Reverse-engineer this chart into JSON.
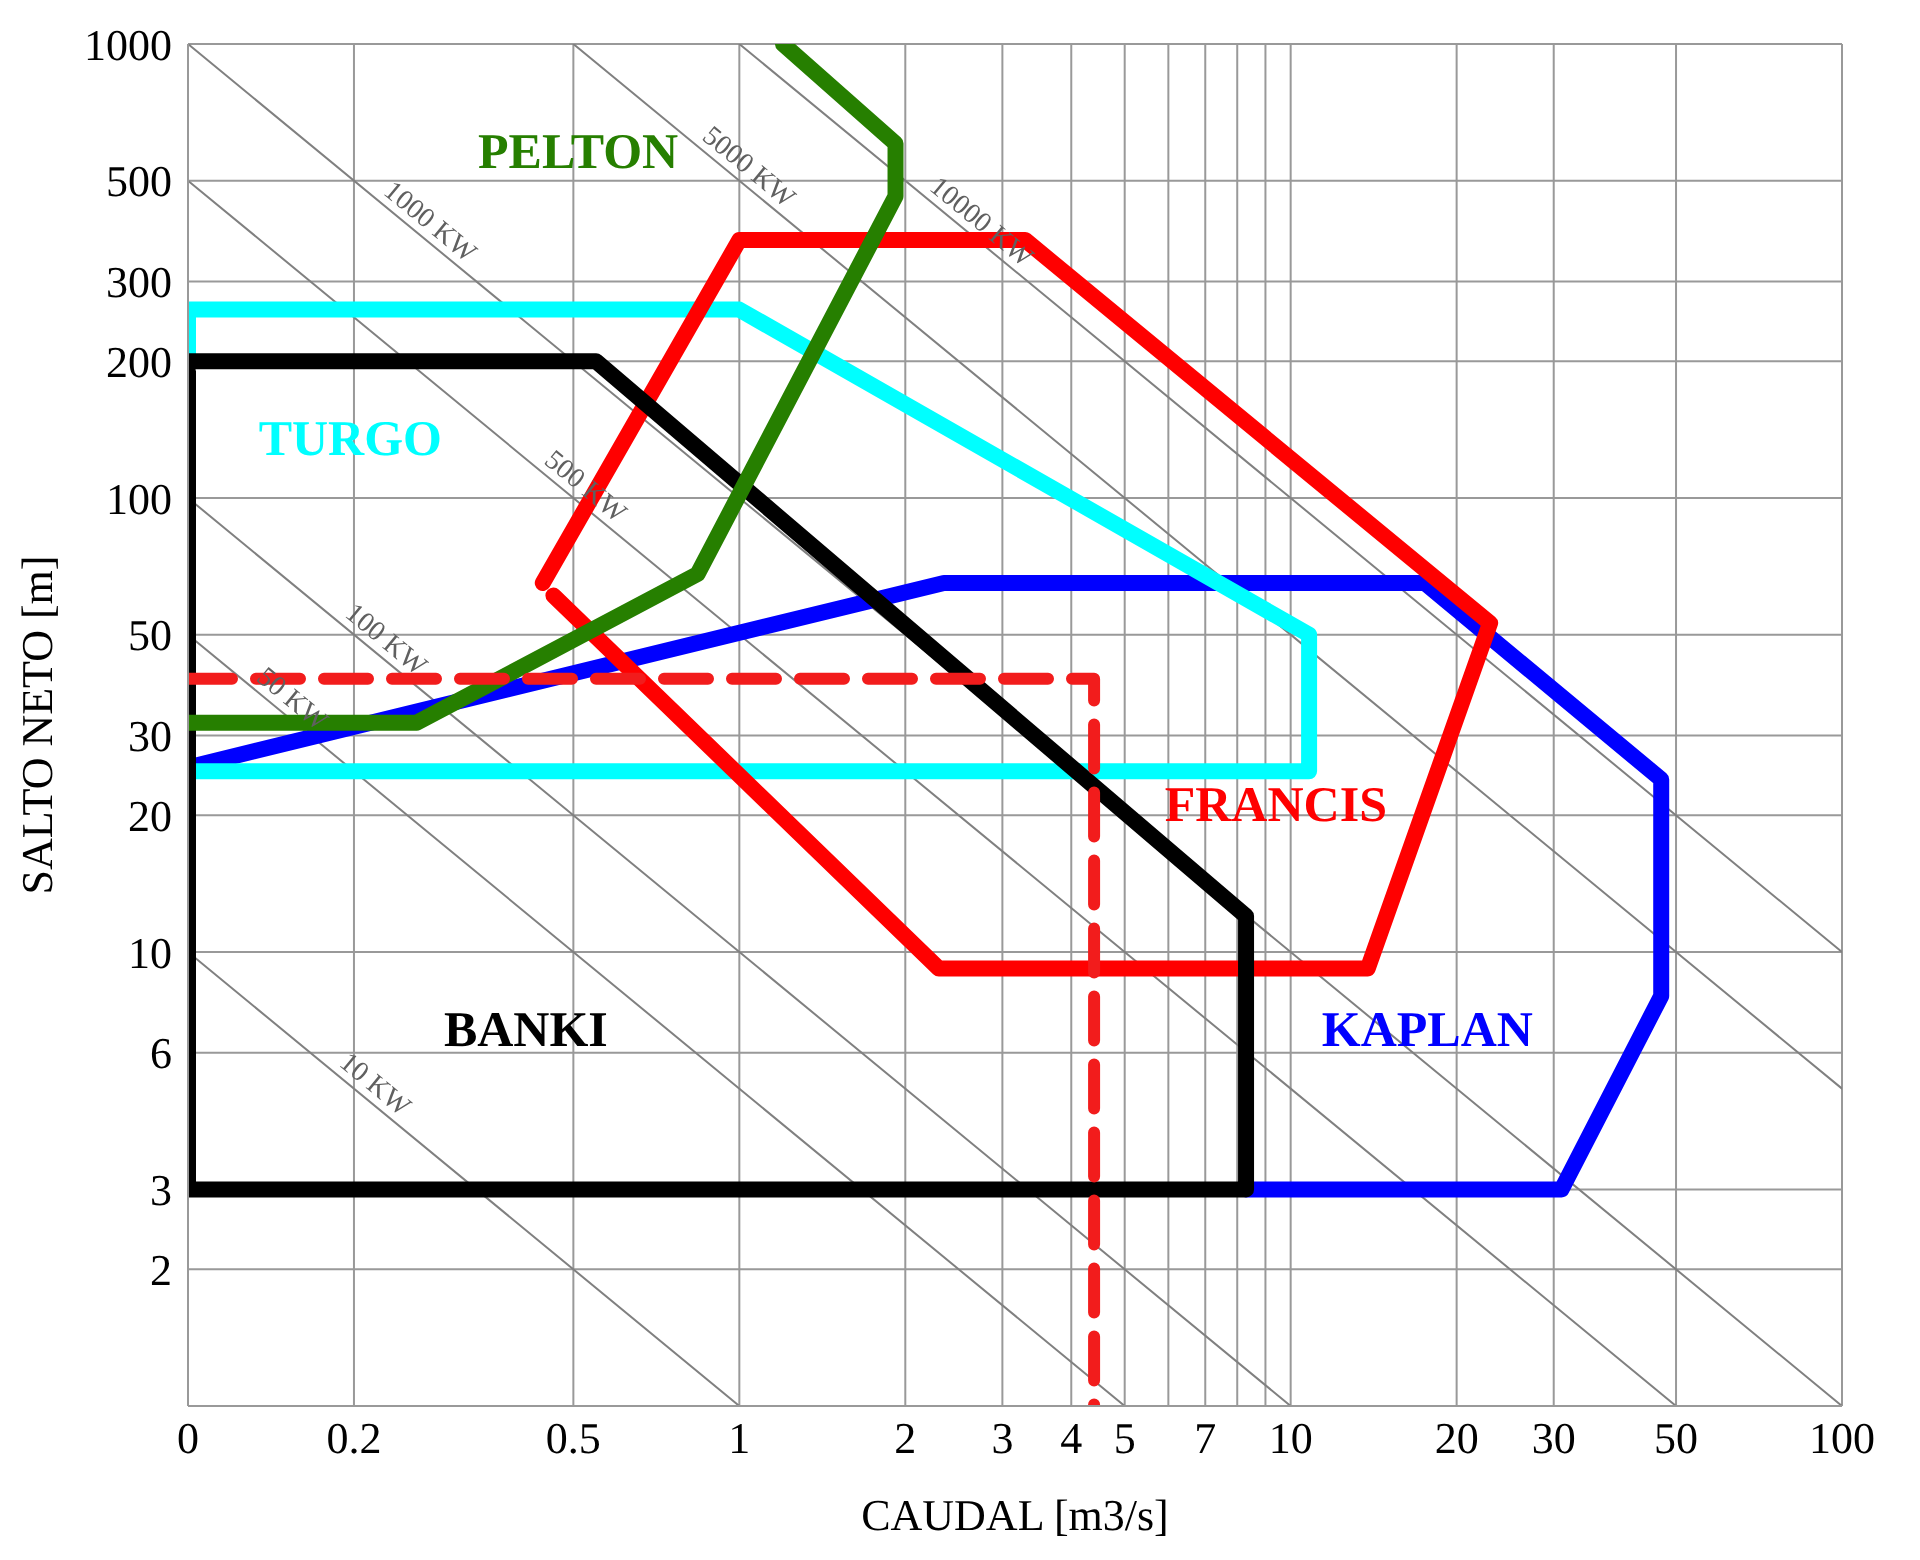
{
  "chart_data": {
    "type": "line",
    "xlabel": "CAUDAL [m3/s]",
    "ylabel": "SALTO NETO [m]",
    "log": "xy",
    "grid": true,
    "marker": "none",
    "xlim": [
      0.1,
      100
    ],
    "ylim": [
      1,
      1000
    ],
    "xticks": [
      {
        "value": 0.1,
        "label": "0"
      },
      0.2,
      0.5,
      1,
      2,
      3,
      4,
      5,
      {
        "value": 6,
        "label": null
      },
      7,
      {
        "value": 8,
        "label": null
      },
      {
        "value": 9,
        "label": null
      },
      10,
      20,
      30,
      50,
      100
    ],
    "yticks": [
      {
        "value": 1,
        "label": null
      },
      2,
      3,
      6,
      10,
      20,
      30,
      50,
      100,
      200,
      300,
      500,
      1000
    ],
    "series": [
      {
        "name": "10 KW",
        "line_style": "solid",
        "color": "#808080",
        "x": [
          0.1,
          1
        ],
        "values": [
          10,
          1
        ]
      },
      {
        "name": "50 KW",
        "line_style": "solid",
        "color": "#808080",
        "x": [
          0.1,
          5
        ],
        "values": [
          50,
          1
        ]
      },
      {
        "name": "100 KW",
        "line_style": "solid",
        "color": "#808080",
        "x": [
          0.1,
          10
        ],
        "values": [
          100,
          1
        ]
      },
      {
        "name": "500 KW",
        "line_style": "solid",
        "color": "#808080",
        "x": [
          0.1,
          50
        ],
        "values": [
          500,
          1
        ]
      },
      {
        "name": "1000 KW",
        "line_style": "solid",
        "color": "#808080",
        "x": [
          0.1,
          100
        ],
        "values": [
          1000,
          1
        ]
      },
      {
        "name": "5000 KW",
        "line_style": "solid",
        "color": "#808080",
        "x": [
          0.5,
          100
        ],
        "values": [
          1000,
          5
        ]
      },
      {
        "name": "10000 KW",
        "line_style": "solid",
        "color": "#808080",
        "x": [
          1,
          100
        ],
        "values": [
          1000,
          10
        ]
      },
      {
        "name": "KAPLAN",
        "color": "#0000ff",
        "x": [
          0.1,
          2.35,
          17.5,
          47,
          47,
          31,
          8.3
        ],
        "values": [
          25.5,
          65,
          65,
          24,
          8,
          3,
          3
        ]
      },
      {
        "name": "TURGO",
        "color": "#00ffff",
        "x": [
          0.1,
          0.1,
          1,
          10.8,
          10.8,
          0.1
        ],
        "values": [
          200,
          260,
          260,
          50,
          25,
          25
        ]
      },
      {
        "name": "FRANCIS",
        "color": "#ff0000",
        "x": [
          0.44,
          1,
          3.3,
          23,
          13.8,
          2.3,
          0.46
        ],
        "values": [
          65,
          370,
          370,
          53,
          9.2,
          9.2,
          61
        ]
      },
      {
        "name": "BANKI",
        "color": "#000000",
        "x": [
          0.1,
          0.55,
          8.3,
          8.3,
          0.1,
          0.1
        ],
        "values": [
          200,
          200,
          12,
          3,
          3,
          190
        ]
      },
      {
        "name": "PELTON",
        "color": "#267f00",
        "x": [
          0.1,
          0.26,
          0.84,
          1.92,
          1.92,
          1.2
        ],
        "values": [
          32,
          32,
          68,
          462,
          604,
          1000
        ]
      },
      {
        "color": "#f21c1c",
        "line_style": "dashed",
        "x": [
          0.1,
          4.4,
          4.4
        ],
        "values": [
          40,
          40,
          1
        ]
      }
    ]
  }
}
